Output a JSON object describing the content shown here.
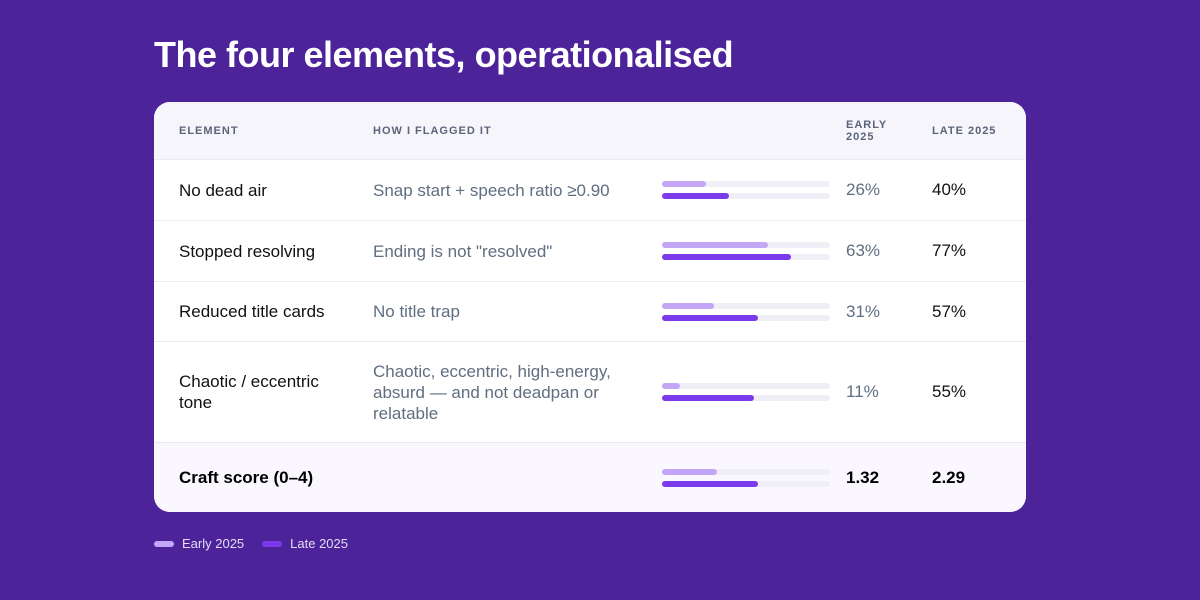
{
  "title": "The four elements, operationalised",
  "table": {
    "columns": [
      "ELEMENT",
      "HOW I FLAGGED IT",
      "EARLY 2025",
      "LATE 2025"
    ],
    "xlim": [
      0,
      100
    ],
    "rows": [
      {
        "element": "No dead air",
        "method": "Snap start + speech ratio ≥0.90",
        "early": 26,
        "late": 40,
        "early_label": "26%",
        "late_label": "40%"
      },
      {
        "element": "Stopped resolving",
        "method": "Ending is not \"resolved\"",
        "early": 63,
        "late": 77,
        "early_label": "63%",
        "late_label": "77%"
      },
      {
        "element": "Reduced title cards",
        "method": "No title trap",
        "early": 31,
        "late": 57,
        "early_label": "31%",
        "late_label": "57%"
      },
      {
        "element": "Chaotic / eccentric tone",
        "method": "Chaotic, eccentric, high-energy, absurd — and not deadpan or relatable",
        "early": 11,
        "late": 55,
        "early_label": "11%",
        "late_label": "55%"
      }
    ]
  },
  "total": {
    "label": "Craft score (0–4)",
    "early": 1.32,
    "late": 2.29,
    "xlim": [
      0,
      4
    ]
  },
  "legend": [
    {
      "name": "Early 2025",
      "color": "#c4a6f6"
    },
    {
      "name": "Late 2025",
      "color": "#7c3aed"
    }
  ]
}
